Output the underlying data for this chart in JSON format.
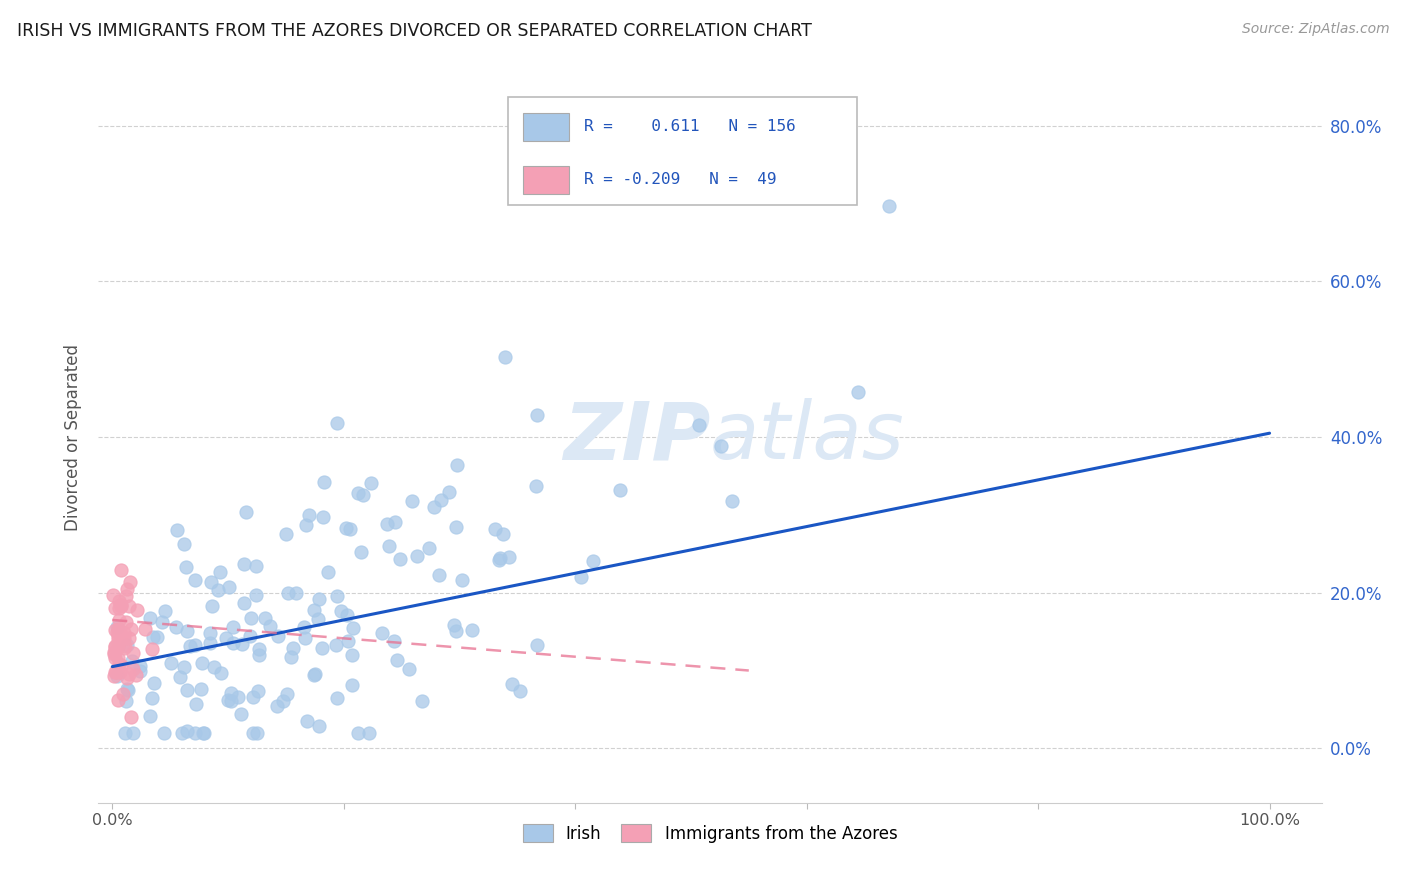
{
  "title": "IRISH VS IMMIGRANTS FROM THE AZORES DIVORCED OR SEPARATED CORRELATION CHART",
  "source": "Source: ZipAtlas.com",
  "ylabel": "Divorced or Separated",
  "irish_color": "#a8c8e8",
  "azores_color": "#f4a0b5",
  "trend_irish_color": "#1a56c4",
  "trend_azores_color": "#e87090",
  "watermark_color": "#dce8f5",
  "background_color": "#ffffff",
  "grid_color": "#cccccc",
  "irish_R": 0.611,
  "irish_N": 156,
  "azores_R": -0.209,
  "azores_N": 49,
  "title_color": "#1a1a1a",
  "source_color": "#999999",
  "ylabel_color": "#555555",
  "tick_color": "#3366cc",
  "xtick_color": "#555555"
}
